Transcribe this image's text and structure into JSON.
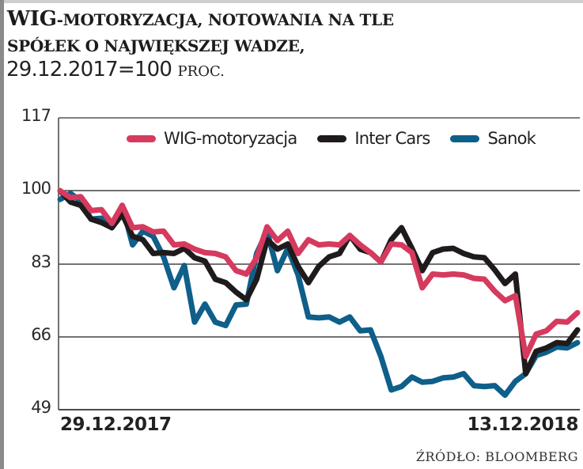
{
  "title": {
    "line1_big": "WIG",
    "line1_rest": "-motoryzacja, notowania na tle",
    "line2": "spółek o największej wadze,",
    "subtitle_main": "29.12.2017=100 ",
    "subtitle_unit": "proc."
  },
  "source": "Źródło: Bloomberg",
  "colors": {
    "wig": "#d63a5e",
    "intercars": "#1f1b1c",
    "sanok": "#0e5f8a",
    "grid": "#3a3a3a"
  },
  "chart_data": {
    "type": "line",
    "title": "WIG-motoryzacja, notowania na tle spółek o największej wadze, 29.12.2017=100 proc.",
    "xlabel": "",
    "ylabel": "",
    "ylim": [
      49,
      117
    ],
    "yticks": [
      117,
      100,
      83,
      66,
      49
    ],
    "x_tick_labels": [
      "29.12.2017",
      "13.12.2018"
    ],
    "x_range": [
      "29.12.2017",
      "13.12.2018"
    ],
    "grid": "horizontal",
    "legend_position": "top-right inside",
    "x": [
      0,
      2,
      4,
      6,
      8,
      10,
      12,
      14,
      16,
      18,
      20,
      22,
      24,
      26,
      28,
      30,
      32,
      34,
      36,
      38,
      40,
      42,
      44,
      46,
      48,
      50,
      52,
      54,
      56,
      58,
      60,
      62,
      64,
      66,
      68,
      70,
      72,
      74,
      76,
      78,
      80,
      82,
      84,
      86,
      88,
      90,
      92,
      94,
      96,
      98,
      100
    ],
    "series": [
      {
        "name": "WIG-motoryzacja",
        "values": [
          100,
          99,
          98,
          96,
          95,
          93,
          96,
          92,
          91,
          91,
          90,
          88,
          87,
          87,
          85,
          86,
          84,
          82,
          80,
          85,
          91,
          89,
          90,
          86,
          88,
          88,
          87,
          88,
          89,
          88,
          85,
          84,
          87,
          88,
          85,
          78,
          80,
          81,
          80,
          81,
          79,
          80,
          76,
          75,
          75,
          62,
          66,
          68,
          69,
          70,
          71
        ]
      },
      {
        "name": "Inter Cars",
        "values": [
          100,
          98,
          96,
          94,
          92,
          92,
          94,
          90,
          88,
          86,
          85,
          86,
          86,
          85,
          83,
          80,
          78,
          77,
          74,
          80,
          88,
          87,
          87,
          83,
          78,
          83,
          84,
          86,
          89,
          87,
          85,
          84,
          88,
          92,
          86,
          82,
          85,
          87,
          86,
          86,
          84,
          85,
          81,
          79,
          80,
          58,
          62,
          64,
          64,
          65,
          67
        ]
      },
      {
        "name": "Sanok",
        "values": [
          98,
          100,
          97,
          94,
          93,
          92,
          96,
          88,
          90,
          90,
          84,
          78,
          82,
          70,
          73,
          70,
          68,
          74,
          73,
          86,
          90,
          82,
          86,
          81,
          70,
          71,
          70,
          70,
          70,
          68,
          67,
          62,
          53,
          55,
          56,
          56,
          55,
          57,
          56,
          58,
          54,
          55,
          54,
          53,
          55,
          58,
          61,
          63,
          63,
          64,
          64
        ]
      }
    ]
  },
  "legend": [
    {
      "label": "WIG-motoryzacja",
      "color_key": "wig"
    },
    {
      "label": "Inter Cars",
      "color_key": "intercars"
    },
    {
      "label": "Sanok",
      "color_key": "sanok"
    }
  ],
  "axis": {
    "y_labels": [
      "117",
      "100",
      "83",
      "66",
      "49"
    ],
    "x_start": "29.12.2017",
    "x_end": "13.12.2018"
  }
}
